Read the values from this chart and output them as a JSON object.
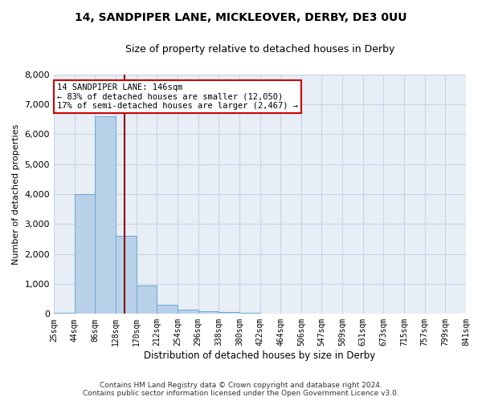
{
  "title": "14, SANDPIPER LANE, MICKLEOVER, DERBY, DE3 0UU",
  "subtitle": "Size of property relative to detached houses in Derby",
  "xlabel": "Distribution of detached houses by size in Derby",
  "ylabel": "Number of detached properties",
  "footer_line1": "Contains HM Land Registry data © Crown copyright and database right 2024.",
  "footer_line2": "Contains public sector information licensed under the Open Government Licence v3.0.",
  "bin_labels": [
    "25sqm",
    "44sqm",
    "86sqm",
    "128sqm",
    "170sqm",
    "212sqm",
    "254sqm",
    "296sqm",
    "338sqm",
    "380sqm",
    "422sqm",
    "464sqm",
    "506sqm",
    "547sqm",
    "589sqm",
    "631sqm",
    "673sqm",
    "715sqm",
    "757sqm",
    "799sqm",
    "841sqm"
  ],
  "bar_heights": [
    25,
    4000,
    6600,
    2600,
    950,
    310,
    130,
    100,
    70,
    30,
    10,
    5,
    2,
    1,
    0,
    0,
    0,
    0,
    0,
    0
  ],
  "bar_color": "#b8d0e8",
  "bar_edge_color": "#6aaad4",
  "grid_color": "#c8d4e4",
  "background_color": "#e8eef6",
  "vline_pos": 3,
  "vline_color": "#8b0000",
  "ylim": [
    0,
    8000
  ],
  "yticks": [
    0,
    1000,
    2000,
    3000,
    4000,
    5000,
    6000,
    7000,
    8000
  ],
  "annotation_text": "14 SANDPIPER LANE: 146sqm\n← 83% of detached houses are smaller (12,050)\n17% of semi-detached houses are larger (2,467) →",
  "annotation_box_color": "#cc0000",
  "title_fontsize": 10,
  "subtitle_fontsize": 9
}
